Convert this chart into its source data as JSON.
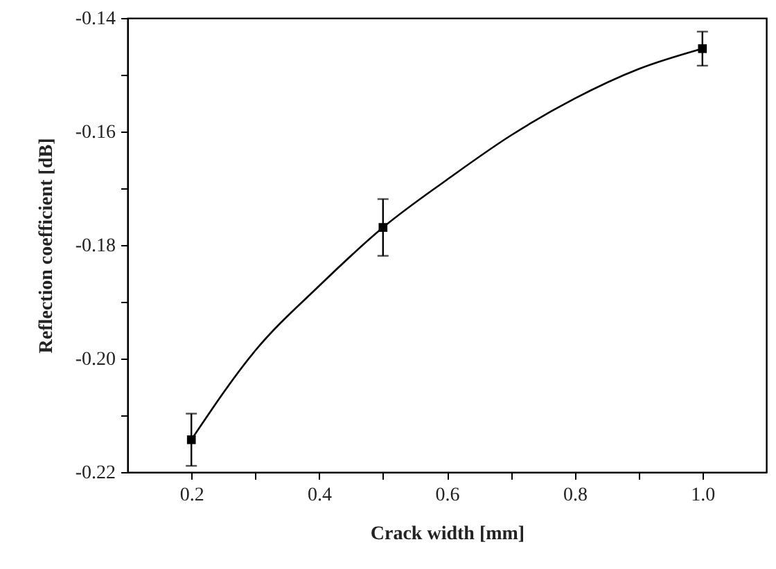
{
  "chart_data": {
    "type": "scatter",
    "xlabel": "Crack width [mm]",
    "ylabel": "Reflection coefficient [dB]",
    "xlim": [
      0.1,
      1.1
    ],
    "xticks": [
      0.2,
      {
        "value": 0.3,
        "label": null
      },
      0.4,
      {
        "value": 0.5,
        "label": null
      },
      0.6,
      {
        "value": 0.7,
        "label": null
      },
      0.8,
      {
        "value": 0.9,
        "label": null
      },
      {
        "value": 1.0,
        "label": "1.0"
      }
    ],
    "ylim": [
      -0.22,
      -0.14
    ],
    "yticks": [
      -0.22,
      {
        "value": -0.21,
        "label": null
      },
      {
        "value": -0.2,
        "label": "-0.20"
      },
      {
        "value": -0.19,
        "label": null
      },
      -0.18,
      {
        "value": -0.17,
        "label": null
      },
      -0.16,
      {
        "value": -0.15,
        "label": null
      },
      -0.14
    ],
    "grid": false,
    "series": [
      {
        "color": "#000000",
        "marker": "square",
        "x": [
          0.2,
          0.5,
          1.0
        ],
        "values": [
          -0.2143,
          -0.1769,
          -0.1454
        ],
        "errors": [
          0.0046,
          0.005,
          0.003
        ]
      },
      {
        "type": "line",
        "color": "#000000",
        "x": [
          0.2,
          0.3,
          0.4,
          0.5,
          0.6,
          0.7,
          0.8,
          0.9,
          1.0
        ],
        "values": [
          -0.2143,
          -0.1986,
          -0.1872,
          -0.1769,
          -0.1685,
          -0.1607,
          -0.1542,
          -0.149,
          -0.1454
        ]
      }
    ]
  }
}
